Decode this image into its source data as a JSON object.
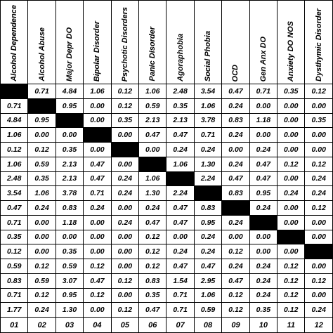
{
  "columns": [
    {
      "label": "Alcohol  Dependence",
      "code": "01"
    },
    {
      "label": "Alcohol Abuse",
      "code": "02"
    },
    {
      "label": "Major Depr DO",
      "code": "03"
    },
    {
      "label": "Bipolar Disorder",
      "code": "04"
    },
    {
      "label": "Psychotic Disorders",
      "code": "05"
    },
    {
      "label": "Panic Disorder",
      "code": "06"
    },
    {
      "label": "Agoraphobia",
      "code": "07"
    },
    {
      "label": "Social Phobia",
      "code": "08"
    },
    {
      "label": "OCD",
      "code": "09"
    },
    {
      "label": "Gen Anx DO",
      "code": "10"
    },
    {
      "label": "Anxiety DO NOS",
      "code": "11"
    },
    {
      "label": "Dysthymic Disorder",
      "code": "12"
    }
  ],
  "rows": [
    [
      "",
      "0.71",
      "4.84",
      "1.06",
      "0.12",
      "1.06",
      "2.48",
      "3.54",
      "0.47",
      "0.71",
      "0.35",
      "0.12"
    ],
    [
      "0.71",
      "",
      "0.95",
      "0.00",
      "0.12",
      "0.59",
      "0.35",
      "1.06",
      "0.24",
      "0.00",
      "0.00",
      "0.00"
    ],
    [
      "4.84",
      "0.95",
      "",
      "0.00",
      "0.35",
      "2.13",
      "2.13",
      "3.78",
      "0.83",
      "1.18",
      "0.00",
      "0.35"
    ],
    [
      "1.06",
      "0.00",
      "0.00",
      "",
      "0.00",
      "0.47",
      "0.47",
      "0.71",
      "0.24",
      "0.00",
      "0.00",
      "0.00"
    ],
    [
      "0.12",
      "0.12",
      "0.35",
      "0.00",
      "",
      "0.00",
      "0.24",
      "0.24",
      "0.00",
      "0.24",
      "0.00",
      "0.00"
    ],
    [
      "1.06",
      "0.59",
      "2.13",
      "0.47",
      "0.00",
      "",
      "1.06",
      "1.30",
      "0.24",
      "0.47",
      "0.12",
      "0.12"
    ],
    [
      "2.48",
      "0.35",
      "2.13",
      "0.47",
      "0.24",
      "1.06",
      "",
      "2.24",
      "0.47",
      "0.47",
      "0.00",
      "0.24"
    ],
    [
      "3.54",
      "1.06",
      "3.78",
      "0.71",
      "0.24",
      "1.30",
      "2.24",
      "",
      "0.83",
      "0.95",
      "0.24",
      "0.24"
    ],
    [
      "0.47",
      "0.24",
      "0.83",
      "0.24",
      "0.00",
      "0.24",
      "0.47",
      "0.83",
      "",
      "0.24",
      "0.00",
      "0.12"
    ],
    [
      "0.71",
      "0.00",
      "1.18",
      "0.00",
      "0.24",
      "0.47",
      "0.47",
      "0.95",
      "0.24",
      "",
      "0.00",
      "0.00"
    ],
    [
      "0.35",
      "0.00",
      "0.00",
      "0.00",
      "0.00",
      "0.12",
      "0.00",
      "0.24",
      "0.00",
      "0.00",
      "",
      "0.00"
    ],
    [
      "0.12",
      "0.00",
      "0.35",
      "0.00",
      "0.00",
      "0.12",
      "0.24",
      "0.24",
      "0.12",
      "0.00",
      "0.00",
      ""
    ],
    [
      "0.59",
      "0.12",
      "0.59",
      "0.12",
      "0.00",
      "0.12",
      "0.47",
      "0.47",
      "0.24",
      "0.24",
      "0.12",
      "0.00"
    ],
    [
      "0.83",
      "0.59",
      "3.07",
      "0.47",
      "0.12",
      "0.83",
      "1.54",
      "2.95",
      "0.47",
      "0.24",
      "0.12",
      "0.12"
    ],
    [
      "0.71",
      "0.12",
      "0.95",
      "0.12",
      "0.00",
      "0.35",
      "0.71",
      "1.06",
      "0.12",
      "0.24",
      "0.12",
      "0.00"
    ],
    [
      "1.77",
      "0.24",
      "1.30",
      "0.00",
      "0.12",
      "0.47",
      "0.71",
      "0.59",
      "0.12",
      "0.35",
      "0.12",
      "0.24"
    ]
  ],
  "diagonal_color": "#000000"
}
